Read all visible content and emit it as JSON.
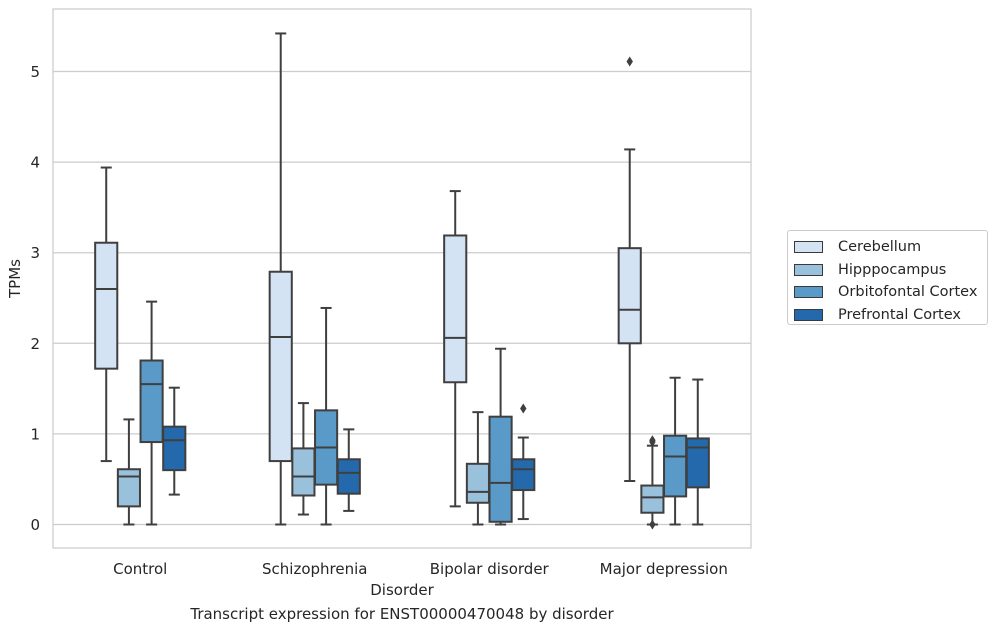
{
  "chart_data": {
    "type": "box",
    "title": "",
    "xlabel": "Disorder",
    "ylabel": "TPMs",
    "caption": "Transcript expression for ENST00000470048 by disorder",
    "categories": [
      "Control",
      "Schizophrenia",
      "Bipolar disorder",
      "Major depression"
    ],
    "ylim": [
      -0.27,
      5.7
    ],
    "yticks": [
      "0",
      "1",
      "2",
      "3",
      "4",
      "5"
    ],
    "grid": "horizontal",
    "legend_position": "right",
    "series": [
      {
        "name": "Cerebellum",
        "color": "#d3e3f3",
        "boxes": [
          {
            "whislo": 0.7,
            "q1": 1.72,
            "med": 2.6,
            "q3": 3.11,
            "whishi": 3.94,
            "fliers": []
          },
          {
            "whislo": 0.0,
            "q1": 0.7,
            "med": 2.07,
            "q3": 2.79,
            "whishi": 5.42,
            "fliers": []
          },
          {
            "whislo": 0.2,
            "q1": 1.57,
            "med": 2.06,
            "q3": 3.19,
            "whishi": 3.68,
            "fliers": []
          },
          {
            "whislo": 0.48,
            "q1": 2.0,
            "med": 2.37,
            "q3": 3.05,
            "whishi": 4.14,
            "fliers": [
              5.11
            ]
          }
        ]
      },
      {
        "name": "Hipppocampus",
        "color": "#9ac1dc",
        "boxes": [
          {
            "whislo": 0.0,
            "q1": 0.2,
            "med": 0.53,
            "q3": 0.61,
            "whishi": 1.16,
            "fliers": []
          },
          {
            "whislo": 0.11,
            "q1": 0.32,
            "med": 0.53,
            "q3": 0.84,
            "whishi": 1.34,
            "fliers": []
          },
          {
            "whislo": 0.0,
            "q1": 0.24,
            "med": 0.36,
            "q3": 0.67,
            "whishi": 1.24,
            "fliers": []
          },
          {
            "whislo": 0.0,
            "q1": 0.13,
            "med": 0.3,
            "q3": 0.43,
            "whishi": 0.87,
            "fliers": [
              0.0,
              0.91,
              0.93
            ]
          }
        ]
      },
      {
        "name": "Orbitofontal Cortex",
        "color": "#5a9ac8",
        "boxes": [
          {
            "whislo": 0.0,
            "q1": 0.91,
            "med": 1.55,
            "q3": 1.81,
            "whishi": 2.46,
            "fliers": []
          },
          {
            "whislo": 0.0,
            "q1": 0.44,
            "med": 0.85,
            "q3": 1.26,
            "whishi": 2.39,
            "fliers": []
          },
          {
            "whislo": 0.0,
            "q1": 0.03,
            "med": 0.46,
            "q3": 1.19,
            "whishi": 1.94,
            "fliers": []
          },
          {
            "whislo": 0.0,
            "q1": 0.31,
            "med": 0.75,
            "q3": 0.98,
            "whishi": 1.62,
            "fliers": []
          }
        ]
      },
      {
        "name": "Prefrontal Cortex",
        "color": "#2469ab",
        "boxes": [
          {
            "whislo": 0.33,
            "q1": 0.6,
            "med": 0.93,
            "q3": 1.08,
            "whishi": 1.51,
            "fliers": []
          },
          {
            "whislo": 0.15,
            "q1": 0.34,
            "med": 0.57,
            "q3": 0.72,
            "whishi": 1.05,
            "fliers": []
          },
          {
            "whislo": 0.06,
            "q1": 0.38,
            "med": 0.61,
            "q3": 0.72,
            "whishi": 0.96,
            "fliers": [
              1.28
            ]
          },
          {
            "whislo": 0.0,
            "q1": 0.41,
            "med": 0.85,
            "q3": 0.95,
            "whishi": 1.6,
            "fliers": []
          }
        ]
      }
    ]
  }
}
